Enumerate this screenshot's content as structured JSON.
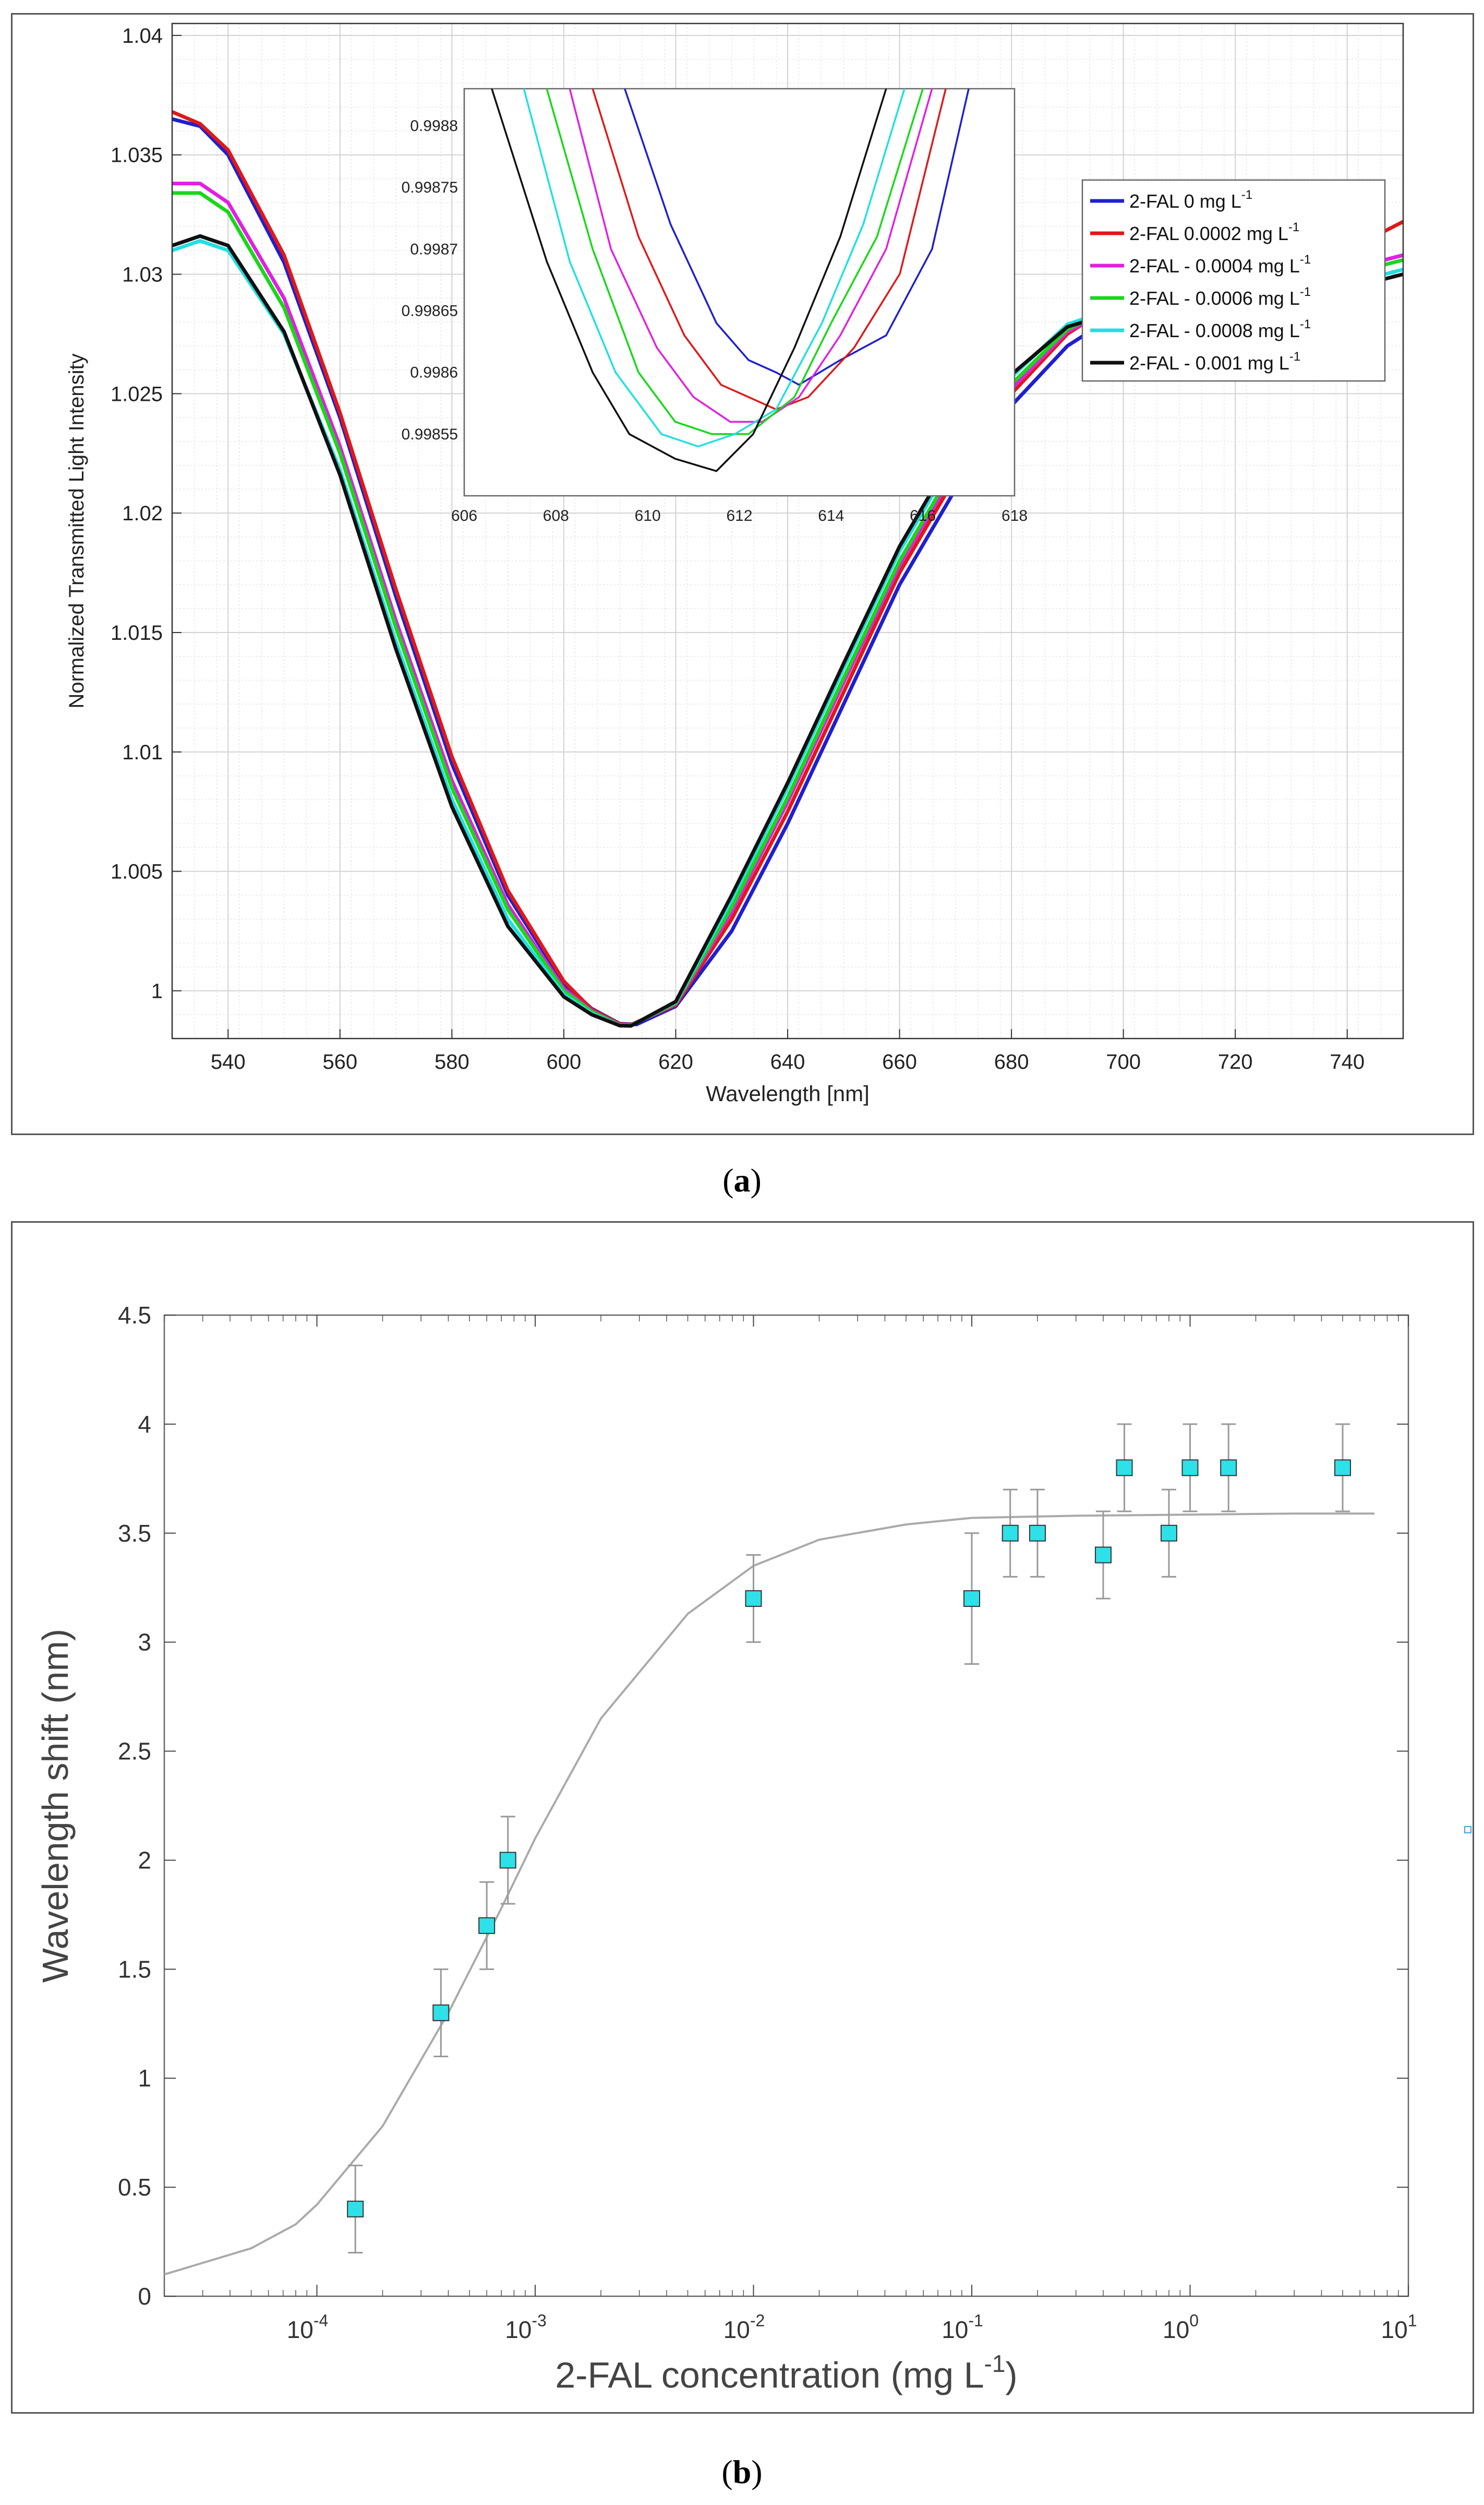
{
  "panel_a": {
    "label_open": "(",
    "label_letter": "a",
    "label_close": ")"
  },
  "panel_b": {
    "label_open": "(",
    "label_letter": "b",
    "label_close": ")"
  },
  "chart_data": [
    {
      "id": "a",
      "type": "line",
      "title": "",
      "xlabel": "Wavelength [nm]",
      "ylabel": "Normalized Transmitted Light Intensity",
      "xlim": [
        530,
        750
      ],
      "ylim": [
        0.998,
        1.0405
      ],
      "xticks": [
        "540",
        "560",
        "580",
        "600",
        "620",
        "640",
        "660",
        "680",
        "700",
        "720",
        "740"
      ],
      "xtick_values": [
        540,
        560,
        580,
        600,
        620,
        640,
        660,
        680,
        700,
        720,
        740
      ],
      "yticks": [
        "1",
        "1.005",
        "1.01",
        "1.015",
        "1.02",
        "1.025",
        "1.03",
        "1.035",
        "1.04"
      ],
      "ytick_values": [
        1,
        1.005,
        1.01,
        1.015,
        1.02,
        1.025,
        1.03,
        1.035,
        1.04
      ],
      "grid": true,
      "legend_position": "top-right",
      "series": [
        {
          "name": "2-FAL 0 mg L",
          "sup": "-1",
          "color": "#1f1fd0",
          "x": [
            530,
            535,
            540,
            550,
            560,
            570,
            580,
            590,
            600,
            605,
            610,
            613,
            620,
            630,
            640,
            650,
            660,
            670,
            680,
            690,
            700,
            710,
            720,
            730,
            740,
            750
          ],
          "y": [
            1.0365,
            1.0362,
            1.035,
            1.0305,
            1.024,
            1.0165,
            1.0095,
            1.004,
            1.0003,
            0.99925,
            0.99862,
            0.99859,
            0.99935,
            1.0025,
            1.007,
            1.012,
            1.017,
            1.021,
            1.0245,
            1.027,
            1.0285,
            1.0288,
            1.0292,
            1.0296,
            1.0302,
            1.0308
          ]
        },
        {
          "name": "2-FAL 0.0002 mg L",
          "sup": "-1",
          "color": "#e01818",
          "x": [
            530,
            535,
            540,
            550,
            560,
            570,
            580,
            590,
            600,
            605,
            610,
            612,
            620,
            630,
            640,
            650,
            660,
            670,
            680,
            690,
            700,
            710,
            720,
            730,
            740,
            750
          ],
          "y": [
            1.0368,
            1.0363,
            1.0352,
            1.0308,
            1.0242,
            1.0168,
            1.0098,
            1.0042,
            1.0004,
            0.99922,
            0.9986,
            0.99858,
            0.9994,
            1.003,
            1.0075,
            1.0125,
            1.0175,
            1.0215,
            1.025,
            1.0275,
            1.029,
            1.0295,
            1.0298,
            1.0302,
            1.031,
            1.0322
          ]
        },
        {
          "name": "2-FAL - 0.0004 mg L",
          "sup": "-1",
          "color": "#e020e0",
          "x": [
            530,
            535,
            540,
            550,
            560,
            570,
            580,
            590,
            600,
            605,
            610,
            612,
            620,
            630,
            640,
            650,
            660,
            670,
            680,
            690,
            700,
            710,
            720,
            730,
            740,
            750
          ],
          "y": [
            1.0338,
            1.0338,
            1.033,
            1.029,
            1.0228,
            1.0155,
            1.0088,
            1.0036,
            1.0001,
            0.99915,
            0.99857,
            0.99856,
            0.99945,
            1.0033,
            1.0079,
            1.0129,
            1.0178,
            1.0218,
            1.0252,
            1.0276,
            1.0288,
            1.029,
            1.0293,
            1.0296,
            1.0302,
            1.0308
          ]
        },
        {
          "name": "2-FAL - 0.0006 mg L",
          "sup": "-1",
          "color": "#18d818",
          "x": [
            530,
            535,
            540,
            550,
            560,
            570,
            580,
            590,
            600,
            605,
            610,
            612,
            620,
            630,
            640,
            650,
            660,
            670,
            680,
            690,
            700,
            710,
            720,
            730,
            740,
            750
          ],
          "y": [
            1.0334,
            1.0334,
            1.0326,
            1.0286,
            1.0225,
            1.0152,
            1.0085,
            1.0034,
            1.0,
            0.99912,
            0.99856,
            0.99855,
            0.99948,
            1.0035,
            1.0081,
            1.0131,
            1.018,
            1.022,
            1.0254,
            1.0277,
            1.0288,
            1.0289,
            1.0291,
            1.0294,
            1.03,
            1.0306
          ]
        },
        {
          "name": "2-FAL - 0.0008 mg L",
          "sup": "-1",
          "color": "#20e0e0",
          "x": [
            530,
            535,
            540,
            550,
            560,
            570,
            580,
            590,
            600,
            605,
            610,
            612,
            620,
            630,
            640,
            650,
            660,
            670,
            680,
            690,
            700,
            710,
            720,
            730,
            740,
            750
          ],
          "y": [
            1.031,
            1.0314,
            1.031,
            1.0275,
            1.0218,
            1.0146,
            1.008,
            1.003,
            0.99985,
            0.99905,
            0.99855,
            0.99854,
            0.99952,
            1.0038,
            1.0085,
            1.0135,
            1.0184,
            1.0224,
            1.0257,
            1.0279,
            1.0287,
            1.0287,
            1.0288,
            1.029,
            1.0296,
            1.0302
          ]
        },
        {
          "name": "2-FAL - 0.001   mg L",
          "sup": "-1",
          "color": "#101010",
          "x": [
            530,
            535,
            540,
            550,
            560,
            570,
            580,
            590,
            600,
            605,
            610,
            612,
            620,
            630,
            640,
            650,
            660,
            670,
            680,
            690,
            700,
            710,
            720,
            730,
            740,
            750
          ],
          "y": [
            1.0312,
            1.0316,
            1.0312,
            1.0276,
            1.0216,
            1.0143,
            1.0077,
            1.0027,
            0.99975,
            0.999,
            0.99854,
            0.99853,
            0.99955,
            1.004,
            1.0087,
            1.0137,
            1.0186,
            1.0226,
            1.0258,
            1.0278,
            1.0285,
            1.0285,
            1.0286,
            1.0288,
            1.0294,
            1.03
          ]
        }
      ],
      "inset": {
        "xlim": [
          606,
          618
        ],
        "ylim": [
          0.9985,
          0.99883
        ],
        "xticks": [
          "606",
          "608",
          "610",
          "612",
          "614",
          "616",
          "618"
        ],
        "xtick_values": [
          606,
          608,
          610,
          612,
          614,
          616,
          618
        ],
        "yticks": [
          "0.99855",
          "0.9986",
          "0.99865",
          "0.9987",
          "0.99875",
          "0.9988"
        ],
        "ytick_values": [
          0.99855,
          0.9986,
          0.99865,
          0.9987,
          0.99875,
          0.9988
        ],
        "series": [
          {
            "x": [
              609.5,
              610.5,
              611.5,
              612.2,
              612.8,
              613.3,
              614.2,
              615.2,
              616.2,
              617.0
            ],
            "y": [
              0.99883,
              0.99872,
              0.99864,
              0.99861,
              0.9986,
              0.99859,
              0.99861,
              0.99863,
              0.9987,
              0.99883
            ]
          },
          {
            "x": [
              608.8,
              609.8,
              610.8,
              611.6,
              612.2,
              612.8,
              613.5,
              614.5,
              615.5,
              616.5
            ],
            "y": [
              0.99883,
              0.99871,
              0.99863,
              0.99859,
              0.99858,
              0.99857,
              0.99858,
              0.99862,
              0.99868,
              0.99883
            ]
          },
          {
            "x": [
              608.3,
              609.2,
              610.2,
              611.0,
              611.8,
              612.5,
              613.3,
              614.2,
              615.2,
              616.2
            ],
            "y": [
              0.99883,
              0.9987,
              0.99862,
              0.99858,
              0.99856,
              0.99856,
              0.99858,
              0.99863,
              0.9987,
              0.99883
            ]
          },
          {
            "x": [
              607.8,
              608.8,
              609.8,
              610.6,
              611.4,
              612.2,
              613.2,
              614.0,
              615.0,
              616.0
            ],
            "y": [
              0.99883,
              0.9987,
              0.9986,
              0.99856,
              0.99855,
              0.99855,
              0.99858,
              0.99864,
              0.99871,
              0.99883
            ]
          },
          {
            "x": [
              607.3,
              608.3,
              609.3,
              610.3,
              611.1,
              611.9,
              612.8,
              613.8,
              614.7,
              615.6
            ],
            "y": [
              0.99883,
              0.99869,
              0.9986,
              0.99855,
              0.99854,
              0.99855,
              0.99857,
              0.99864,
              0.99872,
              0.99883
            ]
          },
          {
            "x": [
              606.6,
              607.8,
              608.8,
              609.6,
              610.6,
              611.5,
              612.3,
              613.2,
              614.2,
              615.2
            ],
            "y": [
              0.99883,
              0.99869,
              0.9986,
              0.99855,
              0.99853,
              0.99852,
              0.99855,
              0.99862,
              0.99871,
              0.99883
            ]
          }
        ]
      }
    },
    {
      "id": "b",
      "type": "scatter",
      "title": "",
      "xlabel": "2-FAL concentration (mg L",
      "xlabel_sup": "-1",
      "xlabel_close": ")",
      "ylabel": "Wavelength shift (nm)",
      "xscale": "log",
      "xlim": [
        2e-05,
        10
      ],
      "ylim": [
        0,
        4.5
      ],
      "xticks": [
        {
          "value": 0.0001,
          "base": "10",
          "exp": "-4"
        },
        {
          "value": 0.001,
          "base": "10",
          "exp": "-3"
        },
        {
          "value": 0.01,
          "base": "10",
          "exp": "-2"
        },
        {
          "value": 0.1,
          "base": "10",
          "exp": "-1"
        },
        {
          "value": 1,
          "base": "10",
          "exp": "0"
        },
        {
          "value": 10,
          "base": "10",
          "exp": "1"
        }
      ],
      "yticks": [
        "0",
        "0.5",
        "1",
        "1.5",
        "2",
        "2.5",
        "3",
        "3.5",
        "4",
        "4.5"
      ],
      "ytick_values": [
        0,
        0.5,
        1,
        1.5,
        2,
        2.5,
        3,
        3.5,
        4,
        4.5
      ],
      "grid": false,
      "points": {
        "x": [
          0.00015,
          0.00037,
          0.0006,
          0.00075,
          0.01,
          0.1,
          0.15,
          0.2,
          0.4,
          0.5,
          0.8,
          1,
          1.5,
          5
        ],
        "y": [
          0.4,
          1.3,
          1.7,
          2.0,
          3.2,
          3.2,
          3.5,
          3.5,
          3.4,
          3.8,
          3.5,
          3.8,
          3.8,
          3.8
        ],
        "err": [
          0.2,
          0.2,
          0.2,
          0.2,
          0.2,
          0.3,
          0.2,
          0.2,
          0.2,
          0.2,
          0.2,
          0.2,
          0.2,
          0.2
        ],
        "color": "#2ee0e8"
      },
      "fit": {
        "x": [
          2e-05,
          5e-05,
          8e-05,
          0.0001,
          0.0002,
          0.0004,
          0.0007,
          0.001,
          0.002,
          0.005,
          0.01,
          0.02,
          0.05,
          0.1,
          0.3,
          1,
          3,
          7
        ],
        "y": [
          0.1,
          0.22,
          0.33,
          0.42,
          0.78,
          1.3,
          1.78,
          2.1,
          2.65,
          3.13,
          3.35,
          3.47,
          3.54,
          3.57,
          3.58,
          3.585,
          3.59,
          3.59
        ],
        "color": "#aaaaaa"
      }
    }
  ]
}
